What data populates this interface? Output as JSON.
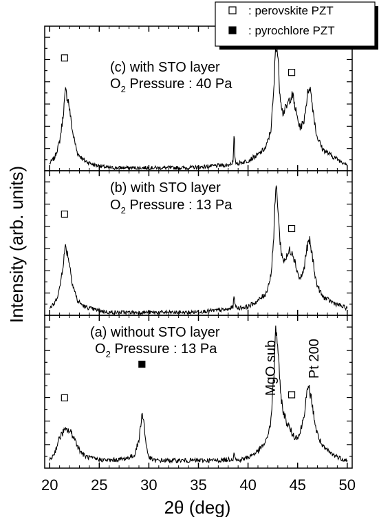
{
  "chart_data": {
    "type": "line",
    "title": "",
    "xlabel": "2θ (deg)",
    "ylabel": "Intensity (arb. units)",
    "xlim": [
      19.5,
      50.5
    ],
    "x_ticks": [
      20,
      25,
      30,
      35,
      40,
      45,
      50
    ],
    "grid": false,
    "legend_placement": "top-right",
    "legend": [
      {
        "marker": "open-square",
        "label": ": perovskite PZT"
      },
      {
        "marker": "filled-square",
        "label": ": pyrochlore PZT"
      }
    ],
    "panels": [
      {
        "id": "c",
        "label_line1": "(c) with STO layer",
        "label_o2": "O",
        "label_sub": "2",
        "label_rest": " Pressure : 40 Pa",
        "series": {
          "x": [
            20.0,
            20.5,
            21.0,
            21.3,
            21.6,
            21.9,
            22.3,
            22.8,
            23.5,
            24.5,
            26.0,
            28.0,
            30.0,
            32.0,
            34.0,
            36.0,
            38.0,
            38.5,
            38.6,
            38.7,
            39.0,
            40.0,
            41.0,
            41.8,
            42.3,
            42.6,
            42.8,
            43.0,
            43.2,
            43.5,
            43.9,
            44.2,
            44.5,
            44.8,
            45.2,
            45.6,
            45.9,
            46.2,
            46.5,
            46.9,
            47.5,
            48.5,
            49.5,
            50.0
          ],
          "y": [
            0.05,
            0.09,
            0.2,
            0.35,
            0.55,
            0.48,
            0.27,
            0.12,
            0.07,
            0.04,
            0.02,
            0.02,
            0.02,
            0.02,
            0.02,
            0.03,
            0.04,
            0.06,
            0.26,
            0.06,
            0.05,
            0.07,
            0.11,
            0.16,
            0.28,
            0.55,
            0.9,
            0.8,
            0.55,
            0.4,
            0.44,
            0.5,
            0.52,
            0.42,
            0.3,
            0.33,
            0.48,
            0.6,
            0.45,
            0.25,
            0.15,
            0.1,
            0.06,
            0.05
          ]
        },
        "annotations": [
          {
            "marker": "open-square",
            "x": 21.5,
            "y": 0.78
          },
          {
            "marker": "open-square",
            "x": 44.4,
            "y": 0.68
          }
        ]
      },
      {
        "id": "b",
        "label_line1": "(b) with STO layer",
        "label_o2": "O",
        "label_sub": "2",
        "label_rest": " Pressure : 13 Pa",
        "series": {
          "x": [
            20.0,
            20.5,
            21.0,
            21.3,
            21.6,
            21.9,
            22.3,
            22.8,
            23.5,
            24.5,
            26.0,
            28.0,
            30.0,
            32.0,
            34.0,
            36.0,
            38.0,
            38.5,
            38.6,
            38.7,
            39.0,
            40.0,
            41.0,
            41.8,
            42.3,
            42.6,
            42.8,
            43.0,
            43.2,
            43.5,
            43.9,
            44.2,
            44.5,
            44.8,
            45.2,
            45.6,
            45.9,
            46.2,
            46.5,
            46.9,
            47.5,
            48.5,
            49.5,
            50.0
          ],
          "y": [
            0.05,
            0.08,
            0.18,
            0.33,
            0.48,
            0.4,
            0.22,
            0.1,
            0.06,
            0.04,
            0.02,
            0.02,
            0.02,
            0.02,
            0.02,
            0.03,
            0.04,
            0.06,
            0.16,
            0.06,
            0.05,
            0.06,
            0.1,
            0.15,
            0.27,
            0.55,
            0.9,
            0.78,
            0.52,
            0.38,
            0.4,
            0.45,
            0.44,
            0.35,
            0.25,
            0.3,
            0.45,
            0.52,
            0.4,
            0.22,
            0.13,
            0.09,
            0.06,
            0.05
          ]
        },
        "annotations": [
          {
            "marker": "open-square",
            "x": 21.5,
            "y": 0.7
          },
          {
            "marker": "open-square",
            "x": 44.4,
            "y": 0.6
          }
        ]
      },
      {
        "id": "a",
        "label_line1": "(a) without STO layer",
        "label_o2": "O",
        "label_sub": "2",
        "label_rest": " Pressure : 13 Pa",
        "series": {
          "x": [
            20.0,
            20.5,
            21.0,
            21.4,
            21.8,
            22.2,
            22.6,
            23.0,
            23.5,
            24.5,
            26.0,
            27.5,
            28.5,
            29.0,
            29.3,
            29.5,
            29.7,
            30.0,
            30.5,
            31.5,
            33.0,
            35.0,
            37.0,
            38.5,
            38.6,
            38.7,
            39.0,
            40.0,
            41.0,
            41.8,
            42.3,
            42.6,
            42.8,
            43.0,
            43.2,
            43.5,
            43.9,
            44.2,
            44.5,
            44.8,
            45.2,
            45.6,
            45.9,
            46.2,
            46.5,
            46.9,
            47.5,
            48.5,
            49.5,
            50.0
          ],
          "y": [
            0.05,
            0.1,
            0.2,
            0.24,
            0.25,
            0.23,
            0.18,
            0.12,
            0.08,
            0.06,
            0.05,
            0.06,
            0.08,
            0.18,
            0.36,
            0.3,
            0.16,
            0.07,
            0.05,
            0.05,
            0.05,
            0.05,
            0.05,
            0.06,
            0.12,
            0.06,
            0.05,
            0.07,
            0.11,
            0.17,
            0.3,
            0.6,
            0.93,
            0.8,
            0.55,
            0.38,
            0.3,
            0.26,
            0.22,
            0.2,
            0.22,
            0.33,
            0.48,
            0.52,
            0.4,
            0.24,
            0.14,
            0.09,
            0.06,
            0.05
          ]
        },
        "annotations": [
          {
            "marker": "open-square",
            "x": 21.5,
            "y": 0.46
          },
          {
            "marker": "filled-square",
            "x": 29.3,
            "y": 0.68
          },
          {
            "marker": "open-square",
            "x": 44.4,
            "y": 0.48
          }
        ],
        "text_labels": [
          {
            "text": "MgO sub",
            "x": 42.0,
            "y": 0.45
          },
          {
            "text": "Pt 200",
            "x": 45.9,
            "y": 0.62
          }
        ]
      }
    ]
  }
}
